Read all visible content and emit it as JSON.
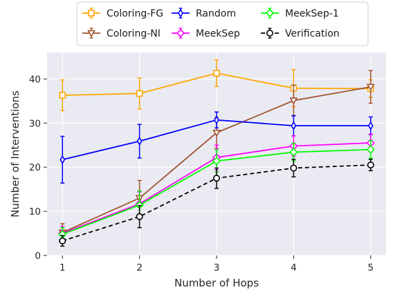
{
  "chart_data": {
    "type": "line",
    "title": "",
    "xlabel": "Number of Hops",
    "ylabel": "Number of Interventions",
    "x": [
      1,
      2,
      3,
      4,
      5
    ],
    "xlim": [
      0.8,
      5.2
    ],
    "ylim": [
      0,
      46
    ],
    "yticks": [
      0,
      10,
      20,
      30,
      40
    ],
    "grid": true,
    "legend_position": "top",
    "series": [
      {
        "name": "Coloring-FG",
        "color": "#FFA500",
        "marker": "square",
        "dash": "solid",
        "values": [
          36.3,
          36.7,
          41.3,
          37.9,
          37.8
        ],
        "errors": [
          3.5,
          3.5,
          3.0,
          4.2,
          2.0
        ]
      },
      {
        "name": "Coloring-NI",
        "color": "#A0522D",
        "marker": "triangle-down",
        "dash": "solid",
        "values": [
          5.2,
          13.0,
          27.8,
          35.1,
          38.2
        ],
        "errors": [
          2.0,
          4.0,
          3.5,
          3.5,
          3.7
        ]
      },
      {
        "name": "Random",
        "color": "#0000FF",
        "marker": "thin-diamond",
        "dash": "solid",
        "values": [
          21.7,
          25.9,
          30.7,
          29.4,
          29.4
        ],
        "errors": [
          5.3,
          3.8,
          1.8,
          2.3,
          2.0
        ]
      },
      {
        "name": "MeekSep",
        "color": "#FF00FF",
        "marker": "diamond",
        "dash": "solid",
        "values": [
          5.0,
          11.7,
          22.2,
          24.8,
          25.5
        ],
        "errors": [
          1.5,
          2.7,
          2.8,
          2.3,
          2.0
        ]
      },
      {
        "name": "MeekSep-1",
        "color": "#00FF00",
        "marker": "diamond",
        "dash": "solid",
        "values": [
          4.8,
          11.4,
          21.4,
          23.4,
          24.0
        ],
        "errors": [
          1.5,
          3.2,
          2.5,
          2.0,
          2.0
        ]
      },
      {
        "name": "Verification",
        "color": "#000000",
        "marker": "circle",
        "dash": "dashed",
        "values": [
          3.3,
          8.8,
          17.5,
          19.8,
          20.5
        ],
        "errors": [
          1.2,
          2.5,
          2.3,
          2.0,
          1.3
        ]
      }
    ]
  }
}
